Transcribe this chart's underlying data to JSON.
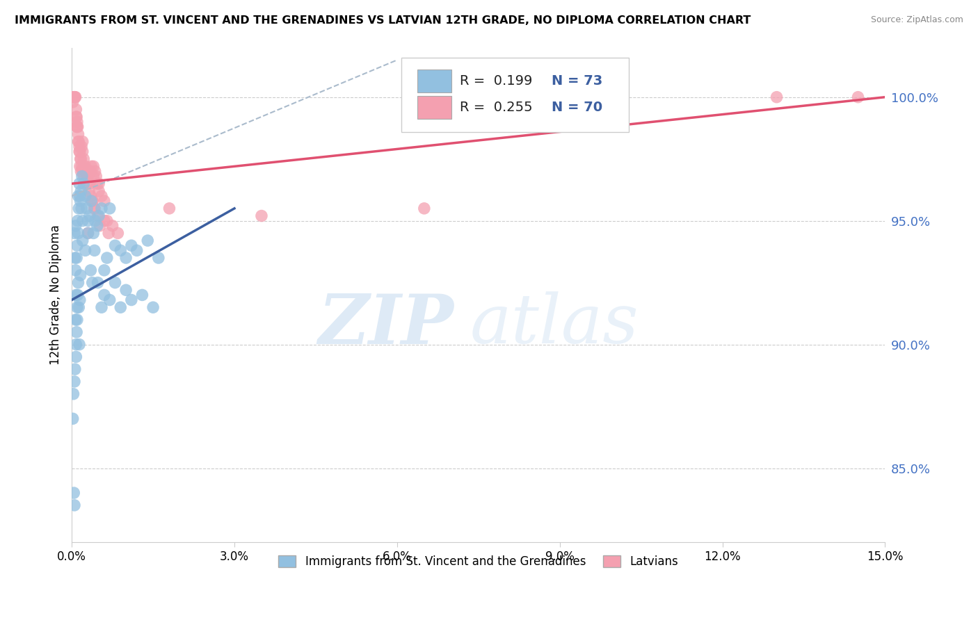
{
  "title": "IMMIGRANTS FROM ST. VINCENT AND THE GRENADINES VS LATVIAN 12TH GRADE, NO DIPLOMA CORRELATION CHART",
  "source": "Source: ZipAtlas.com",
  "ylabel": "12th Grade, No Diploma",
  "xlim": [
    0.0,
    15.0
  ],
  "ylim": [
    82.0,
    102.0
  ],
  "y_ticks": [
    85.0,
    90.0,
    95.0,
    100.0
  ],
  "x_ticks": [
    0.0,
    3.0,
    6.0,
    9.0,
    12.0,
    15.0
  ],
  "legend_R1": "0.199",
  "legend_N1": "73",
  "legend_R2": "0.255",
  "legend_N2": "70",
  "color_blue": "#92C0E0",
  "color_pink": "#F4A0B0",
  "trendline_blue_color": "#3C5FA0",
  "trendline_pink_color": "#E05070",
  "trendline_dashed_color": "#AABBCC",
  "background_color": "#FFFFFF",
  "watermark_zip": "ZIP",
  "watermark_atlas": "atlas",
  "legend_label1": "Immigrants from St. Vincent and the Grenadines",
  "legend_label2": "Latvians",
  "blue_x": [
    0.02,
    0.03,
    0.04,
    0.05,
    0.05,
    0.06,
    0.07,
    0.07,
    0.08,
    0.08,
    0.09,
    0.1,
    0.1,
    0.11,
    0.12,
    0.12,
    0.13,
    0.14,
    0.15,
    0.16,
    0.17,
    0.18,
    0.19,
    0.2,
    0.22,
    0.25,
    0.28,
    0.3,
    0.33,
    0.36,
    0.4,
    0.43,
    0.47,
    0.5,
    0.55,
    0.6,
    0.65,
    0.7,
    0.8,
    0.9,
    1.0,
    1.1,
    1.2,
    1.4,
    1.6,
    0.08,
    0.09,
    0.1,
    0.11,
    0.12,
    0.13,
    0.14,
    0.15,
    0.16,
    0.05,
    0.06,
    0.07,
    0.2,
    0.25,
    0.3,
    0.35,
    0.38,
    0.42,
    0.48,
    0.55,
    0.6,
    0.7,
    0.8,
    0.9,
    1.0,
    1.1,
    1.3,
    1.5
  ],
  "blue_y": [
    87.0,
    88.0,
    84.0,
    83.5,
    88.5,
    89.0,
    91.0,
    93.0,
    90.0,
    92.0,
    93.5,
    91.5,
    94.0,
    95.0,
    94.5,
    96.0,
    95.5,
    96.5,
    96.0,
    95.8,
    96.2,
    95.5,
    96.8,
    95.0,
    96.5,
    96.0,
    95.5,
    95.0,
    95.2,
    95.8,
    94.5,
    95.0,
    94.8,
    95.2,
    95.5,
    93.0,
    93.5,
    95.5,
    94.0,
    93.8,
    93.5,
    94.0,
    93.8,
    94.2,
    93.5,
    89.5,
    90.5,
    91.0,
    92.0,
    92.5,
    91.5,
    90.0,
    91.8,
    92.8,
    94.5,
    93.5,
    94.8,
    94.2,
    93.8,
    94.5,
    93.0,
    92.5,
    93.8,
    92.5,
    91.5,
    92.0,
    91.8,
    92.5,
    91.5,
    92.2,
    91.8,
    92.0,
    91.5
  ],
  "pink_x": [
    0.02,
    0.03,
    0.04,
    0.05,
    0.06,
    0.07,
    0.08,
    0.09,
    0.1,
    0.11,
    0.12,
    0.13,
    0.14,
    0.15,
    0.16,
    0.17,
    0.18,
    0.2,
    0.22,
    0.25,
    0.28,
    0.3,
    0.33,
    0.36,
    0.4,
    0.43,
    0.47,
    0.5,
    0.55,
    0.6,
    0.18,
    0.2,
    0.22,
    0.25,
    0.28,
    0.1,
    0.12,
    0.14,
    0.08,
    0.09,
    0.35,
    0.4,
    0.45,
    0.5,
    0.35,
    0.38,
    0.42,
    0.65,
    1.8,
    3.5,
    6.5,
    9.0,
    13.0,
    14.5,
    0.3,
    0.2,
    0.25,
    0.15,
    0.17,
    0.22,
    0.28,
    0.32,
    0.38,
    0.42,
    0.48,
    0.52,
    0.6,
    0.68,
    0.75,
    0.85
  ],
  "pink_y": [
    99.8,
    100.0,
    100.0,
    100.0,
    100.0,
    100.0,
    99.5,
    99.2,
    99.0,
    98.8,
    98.5,
    98.2,
    98.0,
    97.8,
    97.5,
    97.5,
    97.2,
    97.0,
    97.2,
    97.0,
    97.0,
    96.8,
    96.5,
    97.2,
    96.8,
    97.0,
    96.5,
    96.2,
    96.0,
    95.8,
    98.0,
    97.8,
    97.5,
    97.2,
    96.8,
    98.8,
    98.2,
    97.8,
    99.2,
    98.8,
    97.0,
    97.2,
    96.8,
    96.5,
    96.0,
    95.8,
    95.5,
    95.0,
    95.5,
    95.2,
    95.5,
    100.0,
    100.0,
    100.0,
    94.5,
    98.2,
    97.0,
    97.2,
    97.0,
    96.8,
    96.5,
    96.2,
    95.8,
    95.5,
    95.2,
    94.8,
    95.0,
    94.5,
    94.8,
    94.5
  ],
  "blue_trend_x0": 0.0,
  "blue_trend_y0": 91.8,
  "blue_trend_x1": 3.0,
  "blue_trend_y1": 95.5,
  "pink_trend_x0": 0.0,
  "pink_trend_y0": 96.5,
  "pink_trend_x1": 15.0,
  "pink_trend_y1": 100.0,
  "dash_trend_x0": 0.0,
  "dash_trend_y0": 96.0,
  "dash_trend_x1": 6.0,
  "dash_trend_y1": 101.5
}
